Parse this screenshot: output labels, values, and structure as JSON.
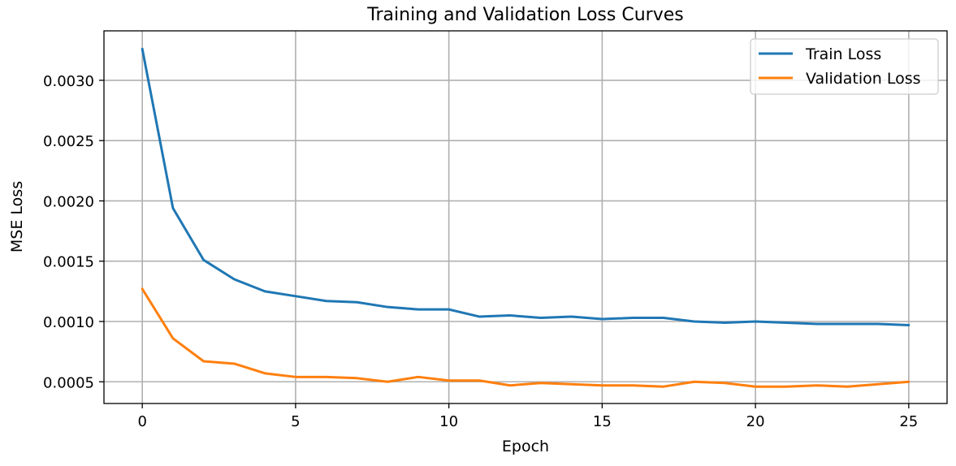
{
  "chart_data": {
    "type": "line",
    "title": "Training and Validation Loss Curves",
    "xlabel": "Epoch",
    "ylabel": "MSE Loss",
    "xlim": [
      -1.25,
      26.25
    ],
    "ylim": [
      0.00032,
      0.00341
    ],
    "xticks": [
      0,
      5,
      10,
      15,
      20,
      25
    ],
    "xtick_labels": [
      "0",
      "5",
      "10",
      "15",
      "20",
      "25"
    ],
    "yticks": [
      0.0005,
      0.001,
      0.0015,
      0.002,
      0.0025,
      0.003
    ],
    "ytick_labels": [
      "0.0005",
      "0.0010",
      "0.0015",
      "0.0020",
      "0.0025",
      "0.0030"
    ],
    "grid": true,
    "legend_position": "top-right",
    "x": [
      0,
      1,
      2,
      3,
      4,
      5,
      6,
      7,
      8,
      9,
      10,
      11,
      12,
      13,
      14,
      15,
      16,
      17,
      18,
      19,
      20,
      21,
      22,
      23,
      24,
      25
    ],
    "series": [
      {
        "name": "Train Loss",
        "color": "#1f77b4",
        "values": [
          0.00326,
          0.00194,
          0.00151,
          0.00135,
          0.00125,
          0.00121,
          0.00117,
          0.00116,
          0.00112,
          0.0011,
          0.0011,
          0.00104,
          0.00105,
          0.00103,
          0.00104,
          0.00102,
          0.00103,
          0.00103,
          0.001,
          0.00099,
          0.001,
          0.00099,
          0.00098,
          0.00098,
          0.00098,
          0.00097
        ]
      },
      {
        "name": "Validation Loss",
        "color": "#ff7f0e",
        "values": [
          0.00127,
          0.00086,
          0.00067,
          0.00065,
          0.00057,
          0.00054,
          0.00054,
          0.00053,
          0.0005,
          0.00054,
          0.00051,
          0.00051,
          0.00047,
          0.00049,
          0.00048,
          0.00047,
          0.00047,
          0.00046,
          0.0005,
          0.00049,
          0.00046,
          0.00046,
          0.00047,
          0.00046,
          0.00048,
          0.0005
        ]
      }
    ]
  }
}
